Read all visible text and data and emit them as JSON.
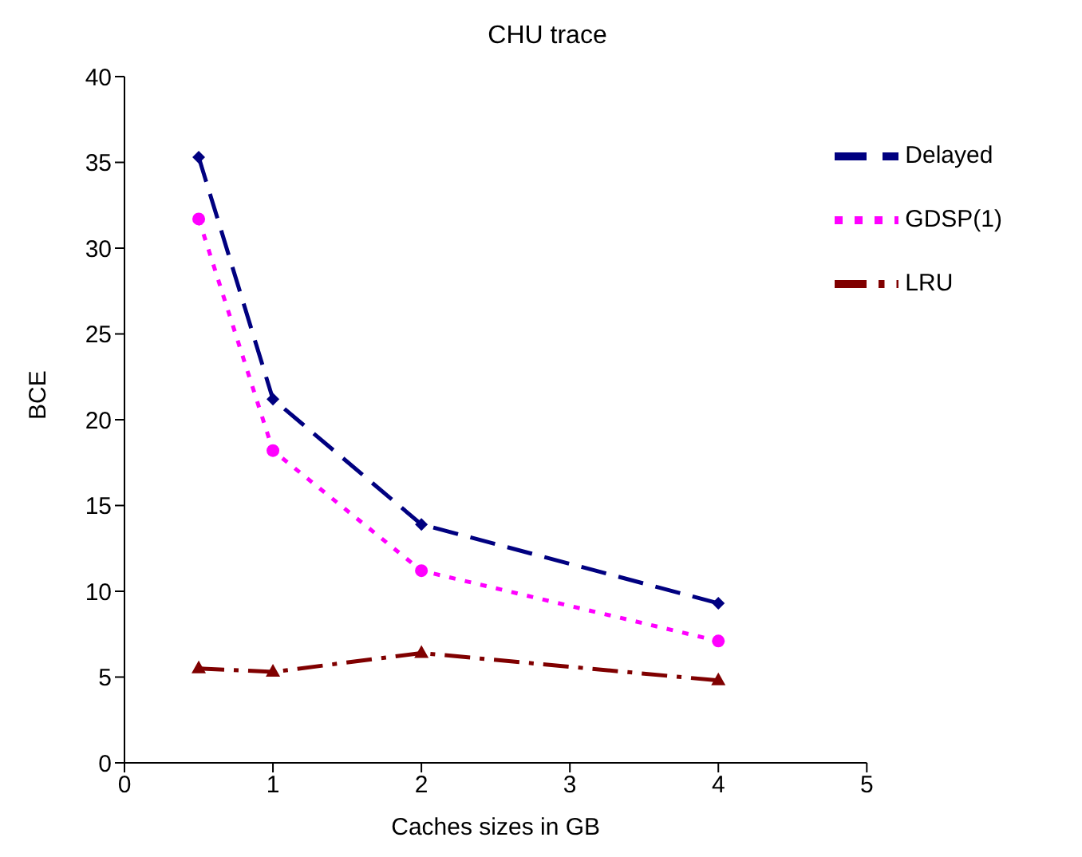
{
  "chart_data": {
    "type": "line",
    "title": "CHU trace",
    "xlabel": "Caches sizes in GB",
    "ylabel": "BCE",
    "x": [
      0.5,
      1,
      2,
      4
    ],
    "series": [
      {
        "name": "Delayed",
        "color": "#000080",
        "values": [
          35.3,
          21.2,
          13.9,
          9.3
        ],
        "marker": "diamond",
        "line_style": "dashed"
      },
      {
        "name": "GDSP(1)",
        "color": "#ff00ff",
        "values": [
          31.7,
          18.2,
          11.2,
          7.1
        ],
        "marker": "circle",
        "line_style": "dotted"
      },
      {
        "name": "LRU",
        "color": "#800000",
        "values": [
          5.5,
          5.3,
          6.4,
          4.8
        ],
        "marker": "triangle",
        "line_style": "dashdot"
      }
    ],
    "xlim": [
      0,
      5
    ],
    "xticks": [
      0,
      1,
      2,
      3,
      4,
      5
    ],
    "ylim": [
      0,
      40
    ],
    "yticks": [
      0,
      5,
      10,
      15,
      20,
      25,
      30,
      35,
      40
    ],
    "grid": false,
    "legend": "top right"
  }
}
